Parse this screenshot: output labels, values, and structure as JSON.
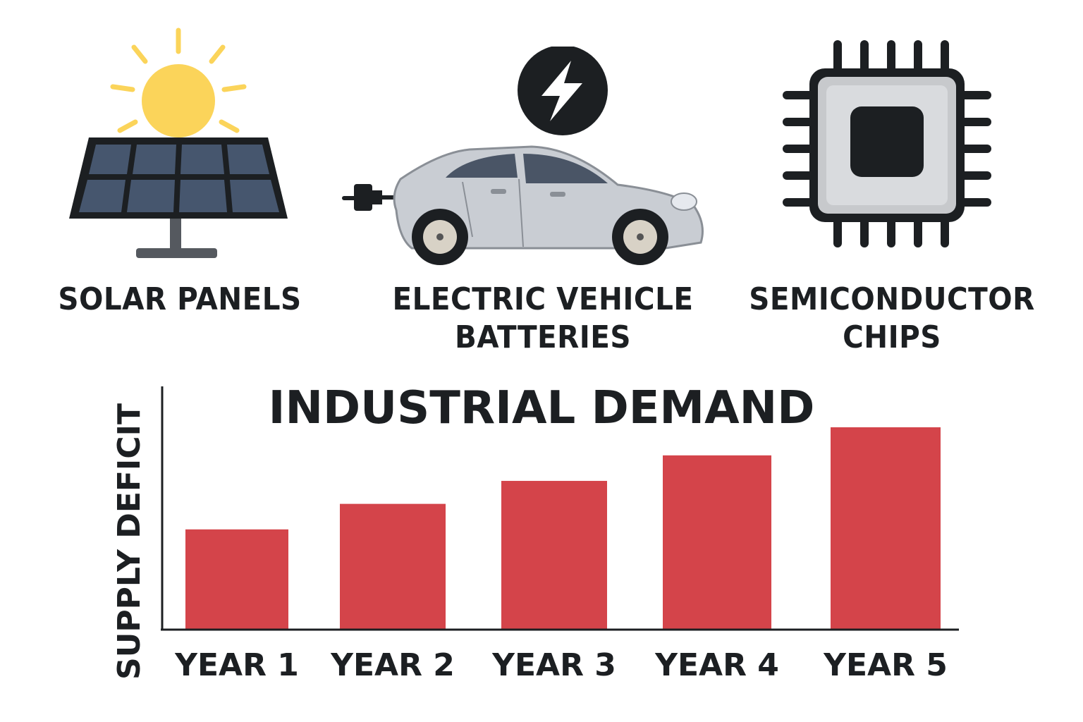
{
  "icons": {
    "solar": {
      "label_lines": [
        "SOLAR PANELS"
      ],
      "icon": "solar-panel-icon"
    },
    "ev": {
      "label_lines": [
        "ELECTRIC VEHICLE",
        "BATTERIES"
      ],
      "icon": "electric-car-icon"
    },
    "chip": {
      "label_lines": [
        "SEMICONDUCTOR",
        "CHIPS"
      ],
      "icon": "microchip-icon"
    }
  },
  "colors": {
    "bar": "#d4444a",
    "dark": "#1c1f22",
    "sun": "#fbd45a",
    "panel": "#46566e",
    "car": "#c9cdd3",
    "chip_body": "#c7c9cc"
  },
  "chart_data": {
    "type": "bar",
    "title": "INDUSTRIAL DEMAND",
    "ylabel": "SUPPLY DEFICIT",
    "xlabel": "",
    "categories": [
      "YEAR 1",
      "YEAR 2",
      "YEAR 3",
      "YEAR 4",
      "YEAR 5"
    ],
    "values": [
      39,
      49,
      58,
      68,
      79
    ],
    "ylim": [
      0,
      100
    ],
    "grid": false
  }
}
